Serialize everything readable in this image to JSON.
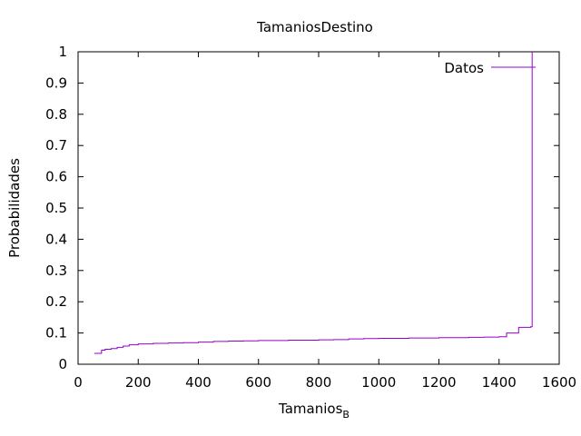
{
  "chart_data": {
    "type": "line",
    "title": "TamaniosDestino",
    "xlabel": "Tamanios",
    "xlabel_subscript": "B",
    "ylabel": "Probabilidades",
    "xlim": [
      0,
      1600
    ],
    "ylim": [
      0,
      1
    ],
    "xticks": [
      0,
      200,
      400,
      600,
      800,
      1000,
      1200,
      1400,
      1600
    ],
    "xtick_labels": [
      "0",
      "200",
      "400",
      "600",
      "800",
      "1000",
      "1200",
      "1400",
      "1600"
    ],
    "yticks": [
      0,
      0.1,
      0.2,
      0.3,
      0.4,
      0.5,
      0.6,
      0.7,
      0.8,
      0.9,
      1
    ],
    "ytick_labels": [
      "0",
      "0.1",
      "0.2",
      "0.3",
      "0.4",
      "0.5",
      "0.6",
      "0.7",
      "0.8",
      "0.9",
      "1"
    ],
    "grid": false,
    "legend_position": "top-right",
    "series": [
      {
        "name": "Datos",
        "color": "#9400d3",
        "step": true,
        "x": [
          54,
          72,
          78,
          90,
          110,
          130,
          150,
          170,
          200,
          250,
          300,
          350,
          400,
          450,
          500,
          550,
          600,
          700,
          800,
          850,
          900,
          950,
          1000,
          1100,
          1200,
          1300,
          1350,
          1400,
          1425,
          1465,
          1505,
          1510,
          1510
        ],
        "y": [
          0.035,
          0.035,
          0.045,
          0.048,
          0.05,
          0.054,
          0.058,
          0.062,
          0.065,
          0.067,
          0.068,
          0.069,
          0.071,
          0.073,
          0.074,
          0.075,
          0.076,
          0.077,
          0.078,
          0.079,
          0.081,
          0.082,
          0.083,
          0.084,
          0.085,
          0.086,
          0.087,
          0.088,
          0.1,
          0.118,
          0.12,
          0.12,
          1.0
        ]
      }
    ]
  }
}
